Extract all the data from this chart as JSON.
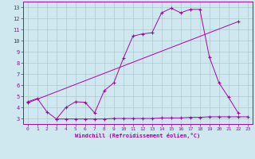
{
  "bg_color": "#cfe8f0",
  "line_color": "#aa00aa",
  "grid_color": "#aacccc",
  "xlabel": "Windchill (Refroidissement éolien,°C)",
  "yticks": [
    3,
    4,
    5,
    6,
    7,
    8,
    9,
    10,
    11,
    12,
    13
  ],
  "xticks": [
    0,
    1,
    2,
    3,
    4,
    5,
    6,
    7,
    8,
    9,
    10,
    11,
    12,
    13,
    14,
    15,
    16,
    17,
    18,
    19,
    20,
    21,
    22,
    23
  ],
  "xlim": [
    -0.5,
    23.5
  ],
  "ylim": [
    2.5,
    13.5
  ],
  "line1_x": [
    0,
    1,
    2,
    3,
    4,
    5,
    6,
    7,
    8,
    9,
    10,
    11,
    12,
    13,
    14,
    15,
    16,
    17,
    18,
    19,
    20,
    21,
    22
  ],
  "line1_y": [
    4.5,
    4.8,
    3.6,
    2.95,
    4.0,
    4.5,
    4.45,
    3.5,
    5.5,
    6.2,
    8.4,
    10.4,
    10.6,
    10.7,
    12.5,
    12.9,
    12.5,
    12.8,
    12.8,
    8.5,
    6.2,
    4.9,
    3.5
  ],
  "line2_x": [
    0,
    22
  ],
  "line2_y": [
    4.4,
    11.7
  ],
  "line3_x": [
    3,
    4,
    5,
    6,
    7,
    8,
    9,
    10,
    11,
    12,
    13,
    14,
    15,
    16,
    17,
    18,
    19,
    20,
    21,
    22,
    23
  ],
  "line3_y": [
    2.95,
    2.95,
    2.95,
    2.95,
    2.95,
    2.95,
    3.0,
    3.0,
    3.0,
    3.0,
    3.0,
    3.05,
    3.05,
    3.05,
    3.1,
    3.1,
    3.15,
    3.15,
    3.15,
    3.15,
    3.15
  ]
}
